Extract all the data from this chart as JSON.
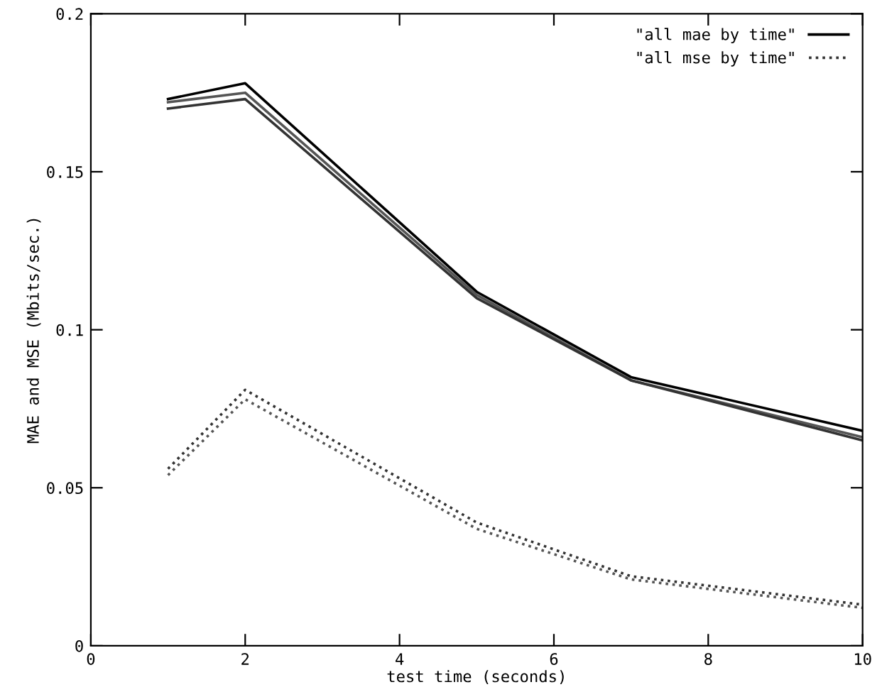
{
  "chart_data": {
    "type": "line",
    "xlabel": "test time (seconds)",
    "ylabel": "MAE and MSE (Mbits/sec.)",
    "x": [
      1,
      2,
      5,
      7,
      10
    ],
    "series": [
      {
        "name": "\"all mae by time\"",
        "color": "#000000",
        "line_style": "solid",
        "values": [
          0.173,
          0.178,
          0.112,
          0.085,
          0.068
        ]
      },
      {
        "color": "#555555",
        "line_style": "solid",
        "values": [
          0.172,
          0.175,
          0.111,
          0.084,
          0.066
        ]
      },
      {
        "color": "#333333",
        "line_style": "solid",
        "values": [
          0.17,
          0.173,
          0.11,
          0.084,
          0.065
        ]
      },
      {
        "name": "\"all mse by time\"",
        "color": "#333333",
        "line_style": "dotted",
        "values": [
          0.056,
          0.081,
          0.039,
          0.022,
          0.013
        ]
      },
      {
        "color": "#555555",
        "line_style": "dotted",
        "values": [
          0.054,
          0.078,
          0.037,
          0.021,
          0.012
        ]
      }
    ],
    "xlim": [
      0,
      10
    ],
    "ylim": [
      0,
      0.2
    ],
    "xticks": [
      0,
      2,
      4,
      6,
      8,
      10
    ],
    "yticks": [
      0,
      0.05,
      0.1,
      0.15,
      0.2
    ],
    "grid": false,
    "legend": "top right",
    "marker": "none"
  }
}
